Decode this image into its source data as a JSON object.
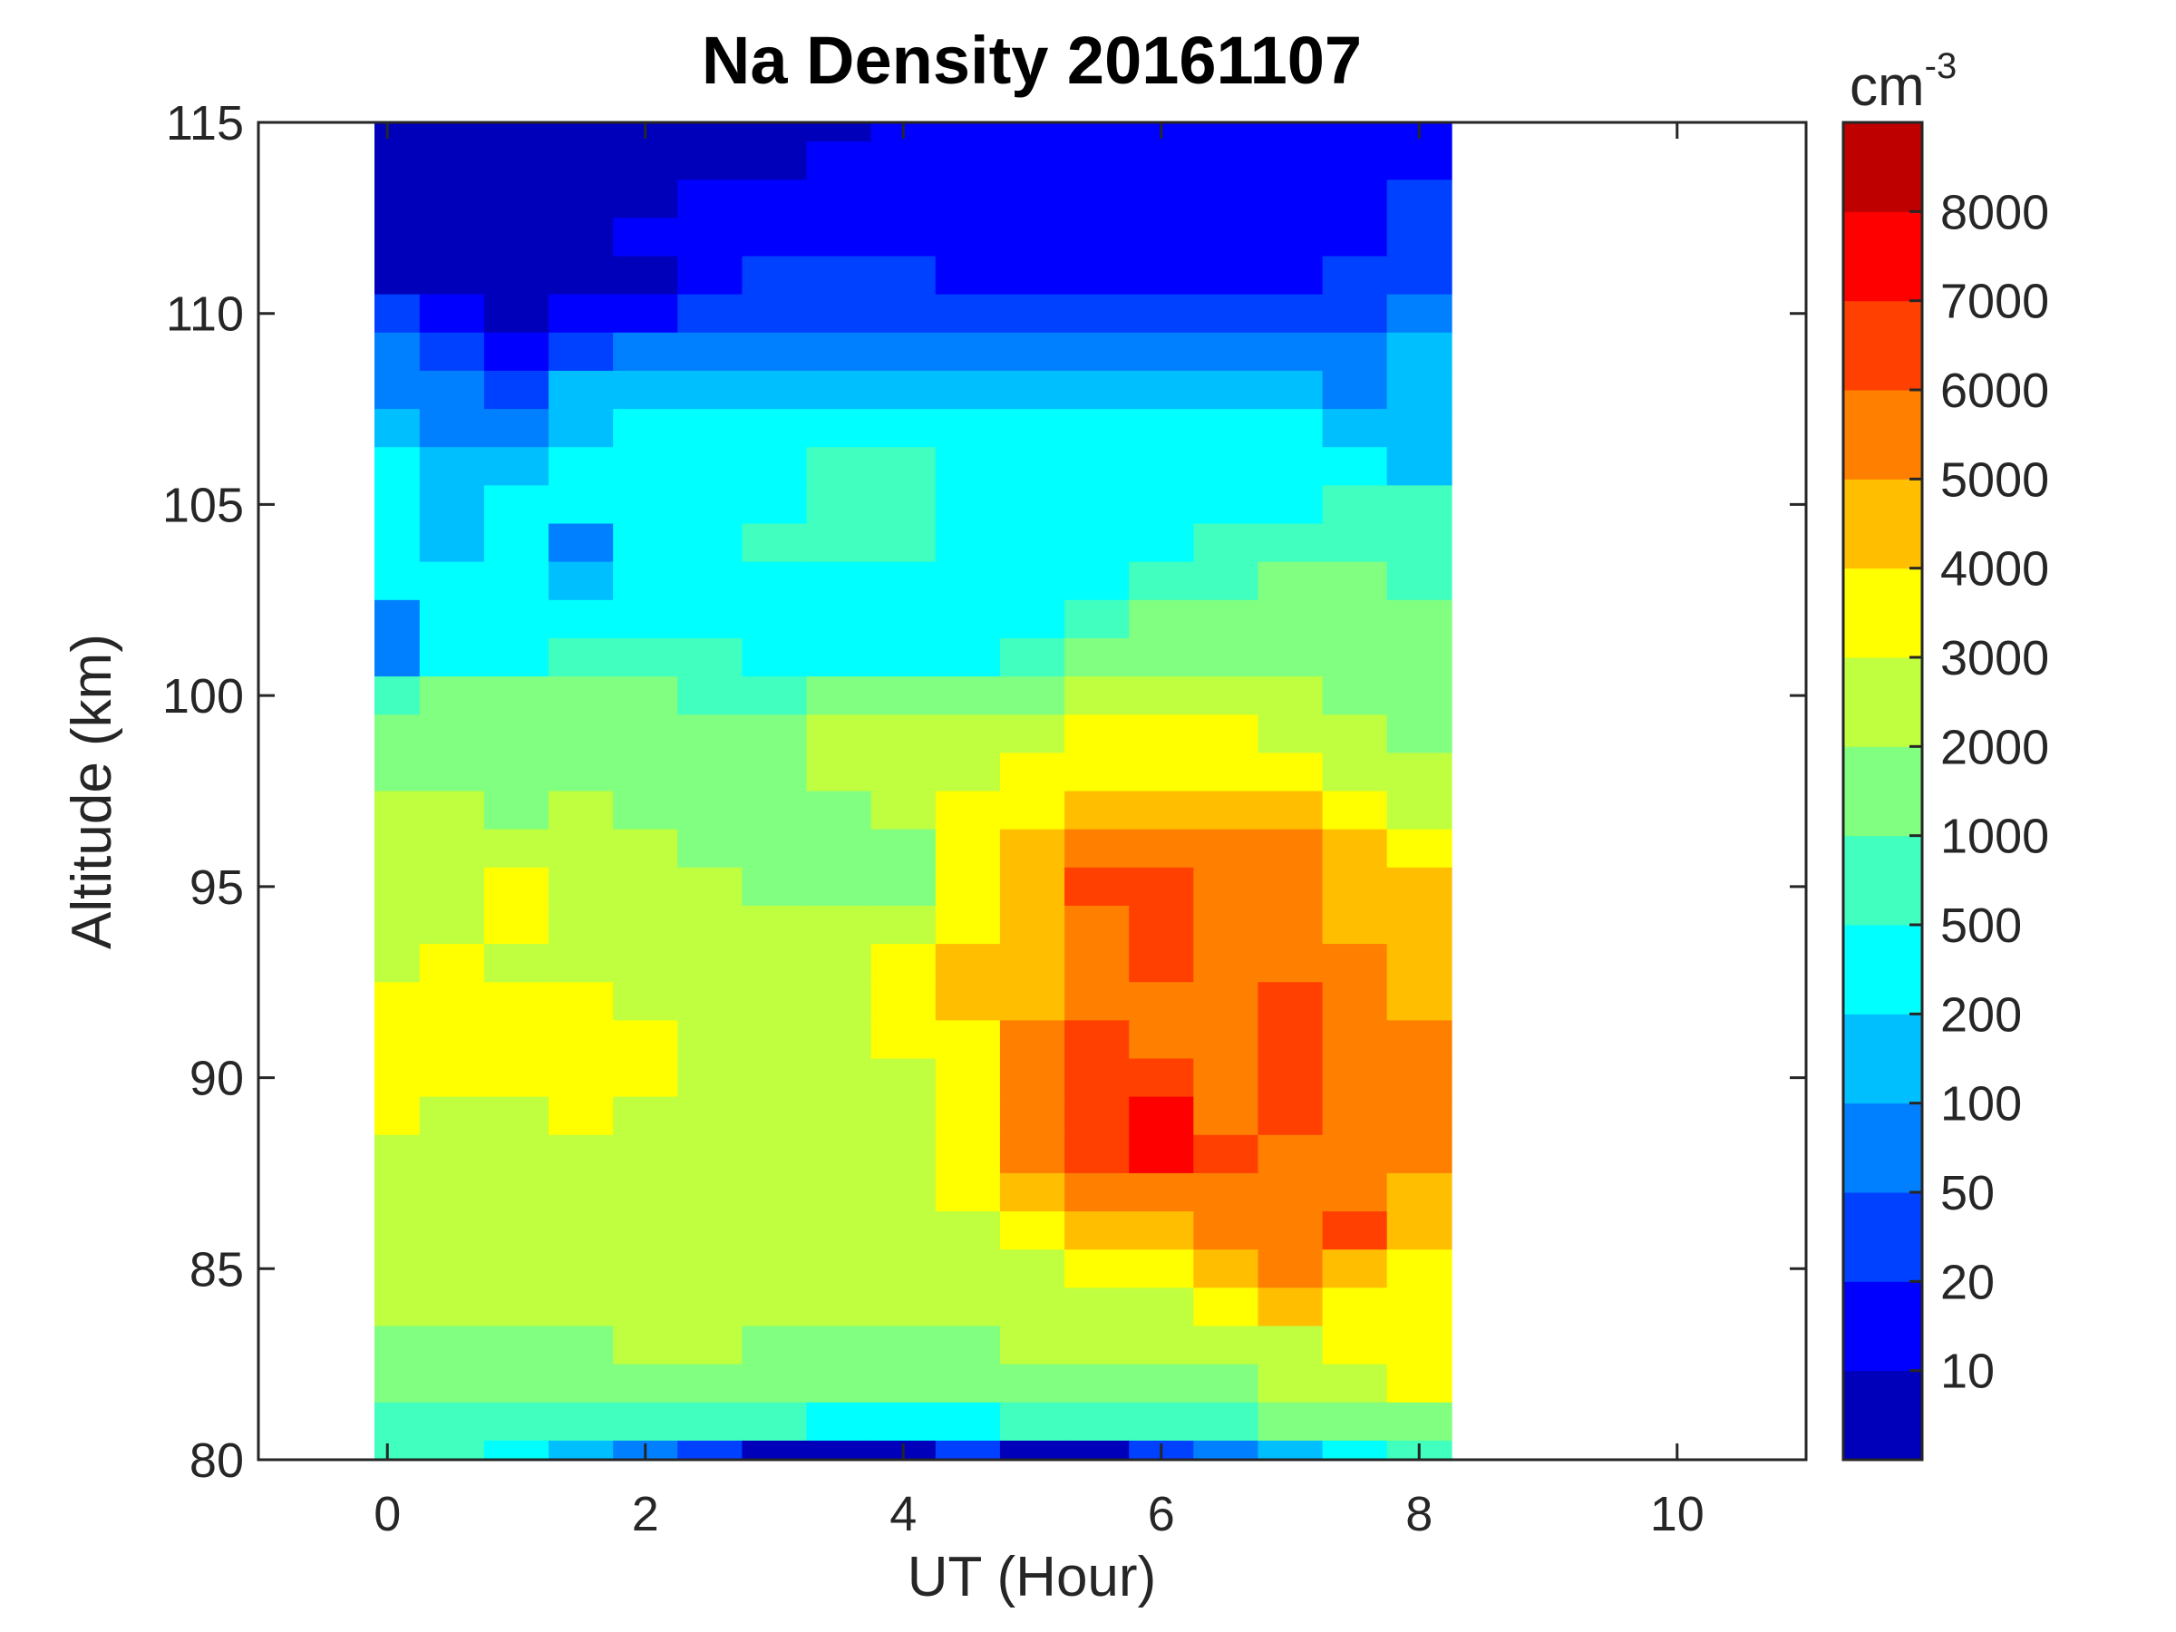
{
  "chart_data": {
    "type": "heatmap",
    "subtype": "filled-contour",
    "title": "Na Density 20161107",
    "xlabel": "UT (Hour)",
    "ylabel": "Altitude (km)",
    "xlim": [
      -1,
      11
    ],
    "ylim": [
      80,
      115
    ],
    "xticks": [
      0,
      2,
      4,
      6,
      8,
      10
    ],
    "yticks": [
      80,
      85,
      90,
      95,
      100,
      105,
      110,
      115
    ],
    "colorbar": {
      "unit": "cm",
      "unit_exponent": "-3",
      "tick_labels": [
        "8000",
        "7000",
        "6000",
        "5000",
        "4000",
        "3000",
        "2000",
        "1000",
        "500",
        "200",
        "100",
        "50",
        "20",
        "10"
      ],
      "level_colors": [
        "#0000BB",
        "#0000FF",
        "#0040FF",
        "#0080FF",
        "#00BFFF",
        "#00FFFF",
        "#40FFBF",
        "#80FF80",
        "#BFFF40",
        "#FFFF00",
        "#FFBF00",
        "#FF8000",
        "#FF4000",
        "#FF0000",
        "#BF0000"
      ]
    },
    "x": [
      0,
      0.5,
      1,
      1.5,
      2,
      2.5,
      3,
      3.5,
      4,
      4.5,
      5,
      5.5,
      6,
      6.5,
      7,
      7.5,
      8
    ],
    "y": [
      115,
      114,
      113,
      112,
      111,
      110,
      109,
      108,
      107,
      106,
      105,
      104,
      103,
      102,
      101,
      100,
      99,
      98,
      97,
      96,
      95,
      94,
      93,
      92,
      91,
      90,
      89,
      88,
      87,
      86,
      85,
      84,
      83,
      82,
      81,
      80
    ],
    "z_level_index": [
      [
        0,
        0,
        0,
        0,
        0,
        0,
        0,
        0,
        1,
        1,
        1,
        1,
        1,
        1,
        1,
        1,
        1
      ],
      [
        0,
        0,
        0,
        0,
        0,
        0,
        0,
        1,
        1,
        1,
        1,
        1,
        1,
        1,
        1,
        1,
        1
      ],
      [
        0,
        0,
        0,
        0,
        0,
        1,
        1,
        1,
        1,
        1,
        1,
        1,
        1,
        1,
        1,
        1,
        2
      ],
      [
        0,
        0,
        0,
        0,
        1,
        1,
        1,
        1,
        1,
        1,
        1,
        1,
        1,
        1,
        1,
        1,
        2
      ],
      [
        0,
        0,
        0,
        0,
        0,
        1,
        2,
        2,
        2,
        1,
        1,
        1,
        1,
        1,
        1,
        2,
        2
      ],
      [
        2,
        1,
        0,
        1,
        1,
        2,
        2,
        2,
        2,
        2,
        2,
        2,
        2,
        2,
        2,
        2,
        3
      ],
      [
        3,
        2,
        1,
        2,
        3,
        3,
        3,
        3,
        3,
        3,
        3,
        3,
        3,
        3,
        3,
        3,
        4
      ],
      [
        3,
        3,
        2,
        4,
        4,
        4,
        4,
        4,
        4,
        4,
        4,
        4,
        4,
        4,
        4,
        3,
        4
      ],
      [
        4,
        3,
        3,
        4,
        5,
        5,
        5,
        5,
        5,
        5,
        5,
        5,
        5,
        5,
        5,
        4,
        4
      ],
      [
        5,
        4,
        4,
        5,
        5,
        5,
        5,
        6,
        6,
        5,
        5,
        5,
        5,
        5,
        5,
        5,
        4
      ],
      [
        5,
        4,
        5,
        5,
        5,
        5,
        5,
        6,
        6,
        5,
        5,
        5,
        5,
        5,
        5,
        6,
        6
      ],
      [
        5,
        4,
        5,
        3,
        5,
        5,
        6,
        6,
        6,
        5,
        5,
        5,
        5,
        6,
        6,
        6,
        6
      ],
      [
        5,
        5,
        5,
        4,
        5,
        5,
        5,
        5,
        5,
        5,
        5,
        5,
        6,
        6,
        7,
        7,
        6
      ],
      [
        3,
        5,
        5,
        5,
        5,
        5,
        5,
        5,
        5,
        5,
        5,
        6,
        7,
        7,
        7,
        7,
        7
      ],
      [
        3,
        5,
        5,
        6,
        6,
        6,
        5,
        5,
        5,
        5,
        6,
        7,
        7,
        7,
        7,
        7,
        7
      ],
      [
        6,
        7,
        7,
        7,
        7,
        6,
        6,
        7,
        7,
        7,
        7,
        8,
        8,
        8,
        8,
        7,
        7
      ],
      [
        7,
        7,
        7,
        7,
        7,
        7,
        7,
        8,
        8,
        8,
        8,
        9,
        9,
        9,
        8,
        8,
        7
      ],
      [
        7,
        7,
        7,
        7,
        7,
        7,
        7,
        8,
        8,
        8,
        9,
        9,
        9,
        9,
        9,
        8,
        8
      ],
      [
        8,
        8,
        7,
        8,
        7,
        7,
        7,
        7,
        8,
        9,
        9,
        10,
        10,
        10,
        10,
        9,
        8
      ],
      [
        8,
        8,
        8,
        8,
        8,
        7,
        7,
        7,
        7,
        9,
        10,
        11,
        11,
        11,
        11,
        10,
        9
      ],
      [
        8,
        8,
        9,
        8,
        8,
        8,
        7,
        7,
        7,
        9,
        10,
        12,
        12,
        11,
        11,
        10,
        10
      ],
      [
        8,
        8,
        9,
        8,
        8,
        8,
        8,
        8,
        8,
        9,
        10,
        11,
        12,
        11,
        11,
        10,
        10
      ],
      [
        8,
        9,
        8,
        8,
        8,
        8,
        8,
        8,
        9,
        10,
        10,
        11,
        12,
        11,
        11,
        11,
        10
      ],
      [
        9,
        9,
        9,
        9,
        8,
        8,
        8,
        8,
        9,
        10,
        10,
        11,
        11,
        11,
        12,
        11,
        10
      ],
      [
        9,
        9,
        9,
        9,
        9,
        8,
        8,
        8,
        9,
        9,
        11,
        12,
        11,
        11,
        12,
        11,
        11
      ],
      [
        9,
        9,
        9,
        9,
        9,
        8,
        8,
        8,
        8,
        9,
        11,
        12,
        12,
        11,
        12,
        11,
        11
      ],
      [
        9,
        8,
        8,
        9,
        8,
        8,
        8,
        8,
        8,
        9,
        11,
        12,
        13,
        11,
        12,
        11,
        11
      ],
      [
        8,
        8,
        8,
        8,
        8,
        8,
        8,
        8,
        8,
        9,
        11,
        12,
        13,
        12,
        11,
        11,
        11
      ],
      [
        8,
        8,
        8,
        8,
        8,
        8,
        8,
        8,
        8,
        9,
        10,
        11,
        11,
        11,
        11,
        11,
        10
      ],
      [
        8,
        8,
        8,
        8,
        8,
        8,
        8,
        8,
        8,
        8,
        9,
        10,
        10,
        11,
        11,
        12,
        10
      ],
      [
        8,
        8,
        8,
        8,
        8,
        8,
        8,
        8,
        8,
        8,
        8,
        9,
        9,
        10,
        11,
        10,
        9
      ],
      [
        8,
        8,
        8,
        8,
        8,
        8,
        8,
        8,
        8,
        8,
        8,
        8,
        8,
        9,
        10,
        9,
        9
      ],
      [
        7,
        7,
        7,
        7,
        8,
        8,
        7,
        7,
        7,
        7,
        8,
        8,
        8,
        8,
        8,
        9,
        9
      ],
      [
        7,
        7,
        7,
        7,
        7,
        7,
        7,
        7,
        7,
        7,
        7,
        7,
        7,
        7,
        8,
        8,
        9
      ],
      [
        6,
        6,
        6,
        6,
        6,
        6,
        6,
        5,
        5,
        5,
        6,
        6,
        6,
        6,
        7,
        7,
        7
      ],
      [
        6,
        6,
        5,
        4,
        3,
        2,
        0,
        0,
        0,
        2,
        0,
        0,
        2,
        3,
        4,
        5,
        6
      ]
    ]
  }
}
